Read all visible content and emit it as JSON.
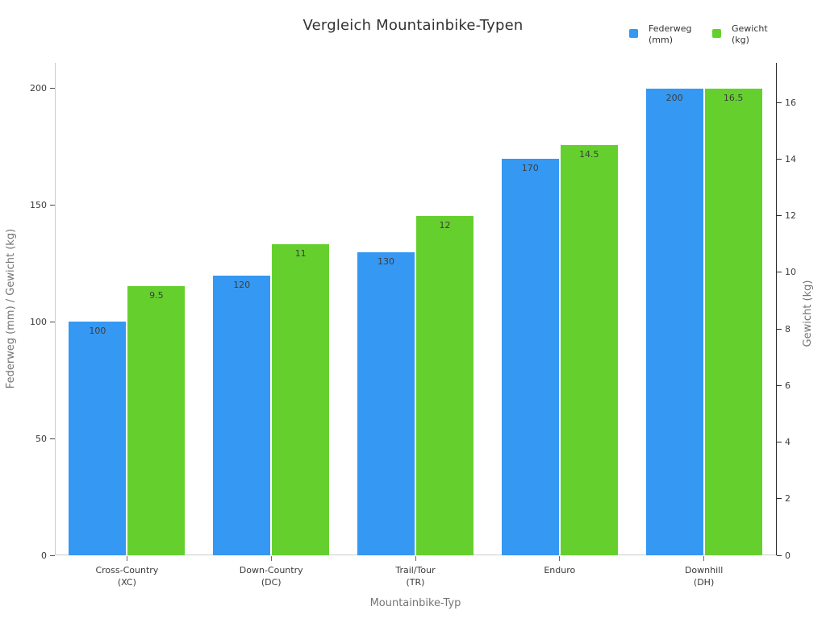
{
  "chart_data": {
    "type": "bar",
    "title": "Vergleich Mountainbike-Typen",
    "xlabel": "Mountainbike-Typ",
    "ylabel_left": "Federweg (mm) / Gewicht (kg)",
    "ylabel_right": "Gewicht (kg)",
    "categories": [
      "Cross-Country\n(XC)",
      "Down-Country\n(DC)",
      "Trail/Tour\n(TR)",
      "Enduro",
      "Downhill\n(DH)"
    ],
    "series": [
      {
        "name": "Federweg\n(mm)",
        "axis": "left",
        "color": "#3598f2",
        "values": [
          100,
          120,
          130,
          170,
          200
        ]
      },
      {
        "name": "Gewicht\n(kg)",
        "axis": "right",
        "color": "#65d02d",
        "values": [
          9.5,
          11,
          12,
          14.5,
          16.5
        ]
      }
    ],
    "left_axis": {
      "ticks": [
        0,
        50,
        100,
        150,
        200
      ],
      "range": [
        0,
        211
      ]
    },
    "right_axis": {
      "ticks": [
        0,
        2,
        4,
        6,
        8,
        10,
        12,
        14,
        16
      ],
      "range": [
        0,
        17.4
      ]
    },
    "legend_position": "top-right",
    "grid": false,
    "background": "#ffffff"
  }
}
